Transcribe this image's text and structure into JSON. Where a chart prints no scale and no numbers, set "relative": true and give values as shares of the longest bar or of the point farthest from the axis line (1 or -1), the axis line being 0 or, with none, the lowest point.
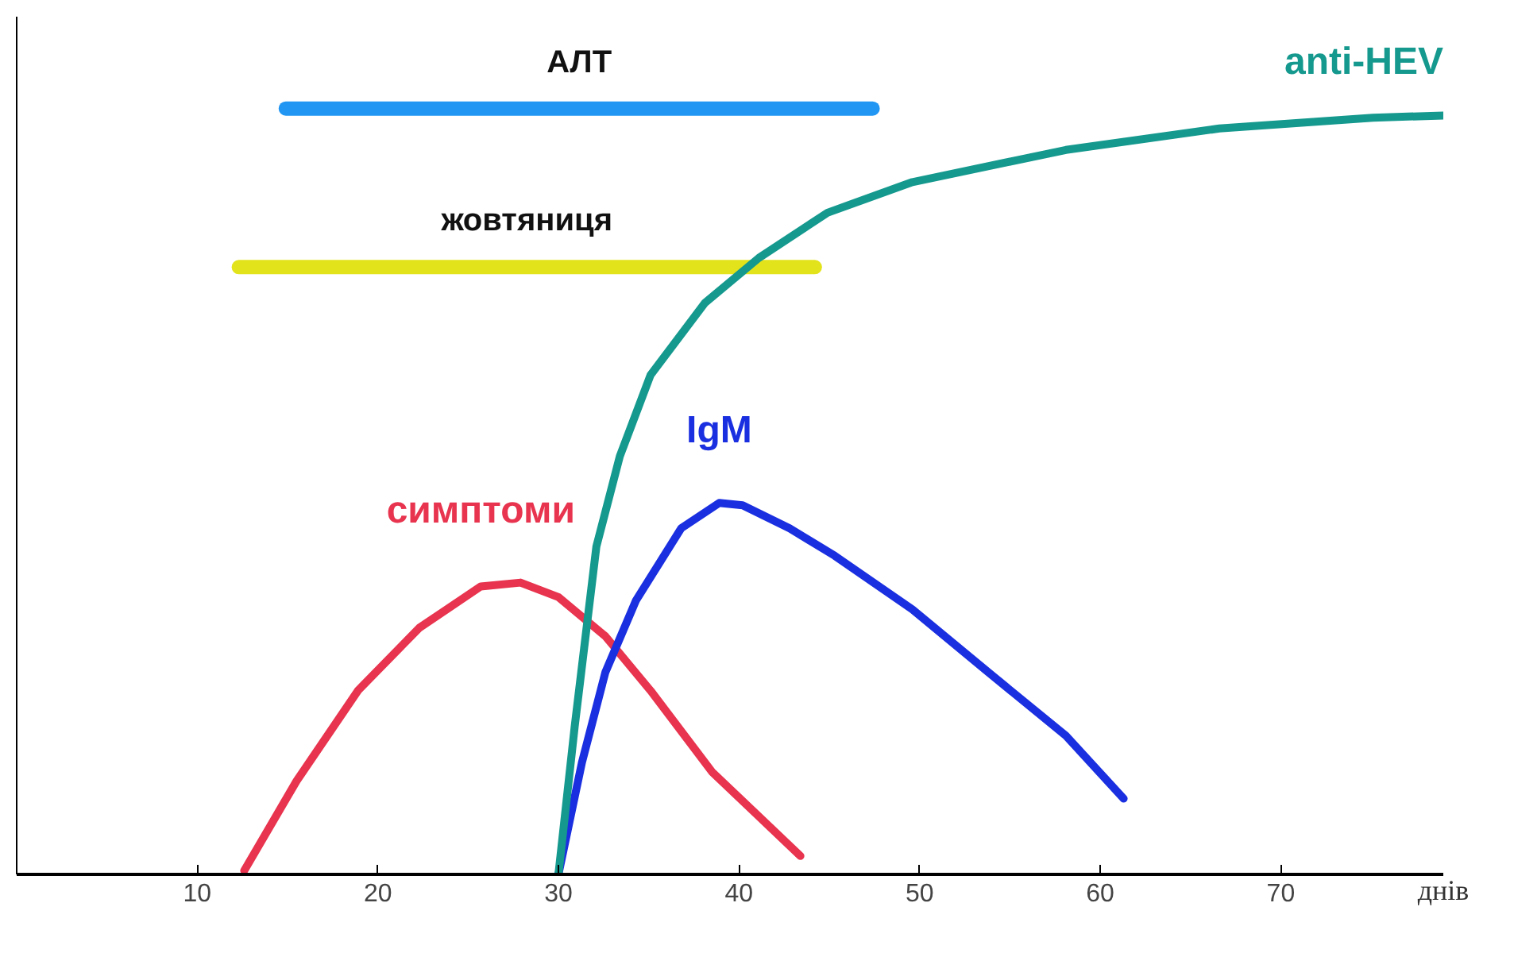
{
  "chart_data": {
    "type": "line",
    "relative": true,
    "xlabel": "днів",
    "xlim": [
      0,
      79
    ],
    "xticks": [
      10,
      20,
      30,
      40,
      50,
      60,
      70
    ],
    "grid": false,
    "legend": false,
    "marker": "none",
    "line_style": "solid",
    "series": [
      {
        "name": "АЛТ",
        "color": "#2196f3",
        "x": [
          14.9,
          47.4
        ],
        "values": [
          1.0,
          1.0
        ]
      },
      {
        "name": "жовтяниця",
        "color": "#e3e31c",
        "x": [
          12.3,
          44.2
        ],
        "values": [
          0.793,
          0.793
        ]
      },
      {
        "name": "симптоми",
        "color": "#e8344e",
        "x": [
          12.6,
          15.5,
          18.9,
          22.3,
          25.7,
          27.9,
          30,
          32.6,
          35.1,
          38.5,
          43.4
        ],
        "values": [
          0.005,
          0.122,
          0.24,
          0.322,
          0.376,
          0.381,
          0.362,
          0.311,
          0.24,
          0.134,
          0.024
        ]
      },
      {
        "name": "IgM",
        "color": "#1a2fe0",
        "x": [
          30,
          31.3,
          32.6,
          34.3,
          36.8,
          38.9,
          40.2,
          42.8,
          45.3,
          49.6,
          53.8,
          58.1,
          61.3
        ],
        "values": [
          0,
          0.146,
          0.264,
          0.358,
          0.452,
          0.485,
          0.482,
          0.452,
          0.416,
          0.346,
          0.264,
          0.181,
          0.099
        ]
      },
      {
        "name": "anti-HEV",
        "color": "#15998e",
        "x": [
          30,
          30.9,
          32.1,
          33.4,
          35.1,
          38.1,
          41.1,
          44.9,
          49.6,
          58.1,
          66.6,
          75.1,
          79
        ],
        "values": [
          0,
          0.193,
          0.428,
          0.546,
          0.652,
          0.746,
          0.805,
          0.864,
          0.904,
          0.946,
          0.974,
          0.988,
          0.991
        ]
      }
    ]
  }
}
